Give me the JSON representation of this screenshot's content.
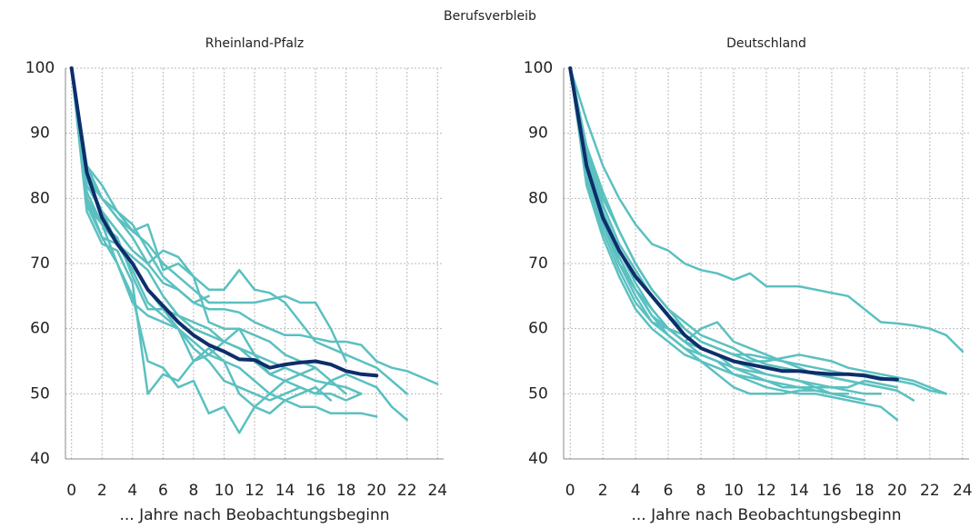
{
  "title": "Berufsverbleib",
  "chart_data": [
    {
      "type": "line",
      "title": "Rheinland-Pfalz",
      "xlabel": "... Jahre nach Beobachtungsbeginn",
      "x": [
        0,
        1,
        2,
        3,
        4,
        5,
        6,
        7,
        8,
        9,
        10,
        11,
        12,
        13,
        14,
        15,
        16,
        17,
        18,
        19,
        20,
        21,
        22,
        23,
        24
      ],
      "xlim": [
        -0.4,
        24.4
      ],
      "xticks": [
        0,
        2,
        4,
        6,
        8,
        10,
        12,
        14,
        16,
        18,
        20,
        22,
        24
      ],
      "ylim": [
        40,
        100
      ],
      "yticks": [
        40,
        50,
        60,
        70,
        80,
        90,
        100
      ],
      "grid": true,
      "series": [
        {
          "color": "#5bc0c0",
          "values": [
            100,
            85,
            82,
            78,
            76,
            72,
            68,
            66,
            64,
            63,
            63,
            62.5,
            61,
            60,
            59,
            59,
            58.5,
            58,
            58,
            57.5,
            55,
            54,
            53.5,
            52.5,
            51.5
          ]
        },
        {
          "color": "#5bc0c0",
          "values": [
            100,
            79,
            74,
            73,
            71,
            69,
            65,
            62,
            60,
            59,
            58,
            57,
            56,
            55,
            54,
            53,
            52,
            51.5,
            51,
            50,
            null,
            null,
            null,
            null,
            null
          ]
        },
        {
          "color": "#5bc0c0",
          "values": [
            100,
            82,
            78,
            75,
            72,
            70,
            72,
            71,
            68,
            66,
            66,
            69,
            66,
            65.5,
            64,
            61,
            58,
            57,
            56,
            55,
            54,
            52,
            50,
            null,
            null
          ]
        },
        {
          "color": "#5bc0c0",
          "values": [
            100,
            84,
            80,
            77,
            75,
            73,
            70,
            68,
            66,
            64,
            64,
            64,
            64,
            64.5,
            65,
            64,
            64,
            60,
            55,
            null,
            null,
            null,
            null,
            null,
            null
          ]
        },
        {
          "color": "#5bc0c0",
          "values": [
            100,
            78,
            73,
            72,
            67,
            50,
            53,
            52,
            55,
            57,
            55,
            50,
            48,
            47,
            49,
            50,
            51,
            49,
            null,
            null,
            null,
            null,
            null,
            null,
            null
          ]
        },
        {
          "color": "#5bc0c0",
          "values": [
            100,
            80,
            74,
            70,
            65,
            55,
            54,
            51,
            52,
            47,
            48,
            44,
            48,
            50,
            52,
            53,
            54,
            null,
            null,
            null,
            null,
            null,
            null,
            null,
            null
          ]
        },
        {
          "color": "#5bc0c0",
          "values": [
            100,
            81,
            76,
            70,
            64,
            62,
            61,
            60,
            55,
            56,
            58,
            60,
            56,
            53,
            54,
            null,
            null,
            null,
            null,
            null,
            null,
            null,
            null,
            null,
            null
          ]
        },
        {
          "color": "#5bc0c0",
          "values": [
            100,
            83,
            78,
            73,
            69,
            64,
            62,
            60,
            58,
            56,
            55,
            54,
            52,
            50,
            49,
            48,
            48,
            47,
            47,
            47,
            46.5,
            null,
            null,
            null,
            null
          ]
        },
        {
          "color": "#5bc0c0",
          "values": [
            100,
            80,
            76,
            73,
            70,
            66,
            63,
            62,
            61,
            60,
            58,
            57,
            55,
            53,
            52,
            51,
            50,
            52,
            53,
            52,
            51,
            48,
            46,
            null,
            null
          ]
        },
        {
          "color": "#5bc0c0",
          "values": [
            100,
            79,
            76,
            74,
            68,
            63,
            63,
            60,
            57,
            55,
            52,
            51,
            50,
            49,
            50,
            51,
            50,
            50,
            49,
            50,
            null,
            null,
            null,
            null,
            null
          ]
        },
        {
          "color": "#5bc0c0",
          "values": [
            100,
            83,
            80,
            77,
            74,
            70,
            67,
            66,
            64,
            65,
            null,
            null,
            null,
            null,
            null,
            null,
            null,
            null,
            null,
            null,
            null,
            null,
            null,
            null,
            null
          ]
        },
        {
          "color": "#5bc0c0",
          "values": [
            100,
            85,
            80,
            78,
            75,
            76,
            69,
            70,
            68,
            61,
            60,
            60,
            59,
            58,
            56,
            55,
            54,
            52,
            50,
            null,
            null,
            null,
            null,
            null,
            null
          ]
        },
        {
          "color": "#0d2e6b",
          "values": [
            100,
            84,
            77,
            73,
            70,
            66,
            63.5,
            61,
            59,
            57.5,
            56.5,
            55.3,
            55.2,
            54,
            54.5,
            54.8,
            55,
            54.5,
            53.5,
            53,
            52.8,
            null,
            null,
            null,
            null
          ]
        }
      ]
    },
    {
      "type": "line",
      "title": "Deutschland",
      "xlabel": "... Jahre nach Beobachtungsbeginn",
      "x": [
        0,
        1,
        2,
        3,
        4,
        5,
        6,
        7,
        8,
        9,
        10,
        11,
        12,
        13,
        14,
        15,
        16,
        17,
        18,
        19,
        20,
        21,
        22,
        23,
        24
      ],
      "xlim": [
        -0.4,
        24.4
      ],
      "xticks": [
        0,
        2,
        4,
        6,
        8,
        10,
        12,
        14,
        16,
        18,
        20,
        22,
        24
      ],
      "ylim": [
        40,
        100
      ],
      "yticks": [
        40,
        50,
        60,
        70,
        80,
        90,
        100
      ],
      "grid": true,
      "series": [
        {
          "color": "#5bc0c0",
          "values": [
            100,
            92,
            85,
            80,
            76,
            73,
            72,
            70,
            69,
            68.5,
            67.5,
            68.5,
            66.5,
            66.5,
            66.5,
            66,
            65.5,
            65,
            63,
            61,
            60.8,
            60.5,
            60,
            59,
            56.5
          ]
        },
        {
          "color": "#5bc0c0",
          "values": [
            100,
            88,
            80,
            75,
            70,
            66,
            63,
            60,
            58,
            57,
            56,
            55,
            55,
            55.5,
            56,
            55.5,
            55,
            54,
            53.5,
            53,
            52.5,
            52,
            51,
            50,
            null
          ]
        },
        {
          "color": "#5bc0c0",
          "values": [
            100,
            84,
            76,
            70,
            65,
            61,
            59,
            57,
            56,
            55,
            53,
            52,
            51,
            50.5,
            50,
            50,
            49.5,
            49,
            48.5,
            48,
            46,
            null,
            null,
            null,
            null
          ]
        },
        {
          "color": "#5bc0c0",
          "values": [
            100,
            83,
            75,
            69,
            64,
            61,
            60,
            58,
            60,
            61,
            58,
            57,
            56,
            55,
            54,
            53,
            52.5,
            52,
            51.5,
            51,
            50.5,
            49,
            null,
            null,
            null
          ]
        },
        {
          "color": "#5bc0c0",
          "values": [
            100,
            82,
            74,
            68,
            63,
            60,
            58,
            56,
            55,
            54,
            53,
            52.5,
            52,
            51.5,
            51,
            50.5,
            50,
            50,
            null,
            null,
            null,
            null,
            null,
            null,
            null
          ]
        },
        {
          "color": "#5bc0c0",
          "values": [
            100,
            86,
            78,
            72,
            67,
            63,
            60,
            58,
            57,
            56,
            54,
            53,
            52,
            51,
            51,
            51,
            51,
            50.5,
            50,
            50,
            null,
            null,
            null,
            null,
            null
          ]
        },
        {
          "color": "#5bc0c0",
          "values": [
            100,
            85,
            77,
            71,
            66,
            62,
            59,
            57,
            55,
            53,
            51,
            50,
            50,
            50,
            50.5,
            50.5,
            null,
            null,
            null,
            null,
            null,
            null,
            null,
            null,
            null
          ]
        },
        {
          "color": "#5bc0c0",
          "values": [
            100,
            87,
            79,
            73,
            69,
            65,
            62,
            60,
            58,
            57,
            56,
            56,
            55.5,
            55,
            54.5,
            54,
            53.5,
            53,
            53,
            52.5,
            52,
            51.5,
            50.5,
            50,
            null
          ]
        },
        {
          "color": "#5bc0c0",
          "values": [
            100,
            84,
            76,
            71,
            66,
            63,
            60,
            59,
            57,
            56,
            55,
            54,
            53,
            52.5,
            52,
            51.5,
            51,
            51,
            52,
            51.5,
            51,
            null,
            null,
            null,
            null
          ]
        },
        {
          "color": "#5bc0c0",
          "values": [
            100,
            83,
            76,
            70,
            66,
            62,
            60,
            58,
            56,
            55,
            54,
            53.5,
            53,
            52.5,
            52,
            51,
            50,
            49.5,
            49,
            null,
            null,
            null,
            null,
            null,
            null
          ]
        },
        {
          "color": "#5bc0c0",
          "values": [
            100,
            88,
            81,
            75,
            70,
            66,
            63,
            61,
            59,
            58,
            57,
            55.5,
            54.5,
            54,
            53.5,
            53,
            52.5,
            52,
            51.5,
            51,
            50.5,
            null,
            null,
            null,
            null
          ]
        },
        {
          "color": "#0d2e6b",
          "values": [
            100,
            85,
            77,
            72,
            68,
            65,
            62,
            59,
            57,
            56,
            55,
            54.5,
            54,
            53.5,
            53.5,
            53.2,
            53,
            53,
            52.8,
            52.3,
            52.2,
            null,
            null,
            null,
            null
          ]
        }
      ]
    }
  ]
}
